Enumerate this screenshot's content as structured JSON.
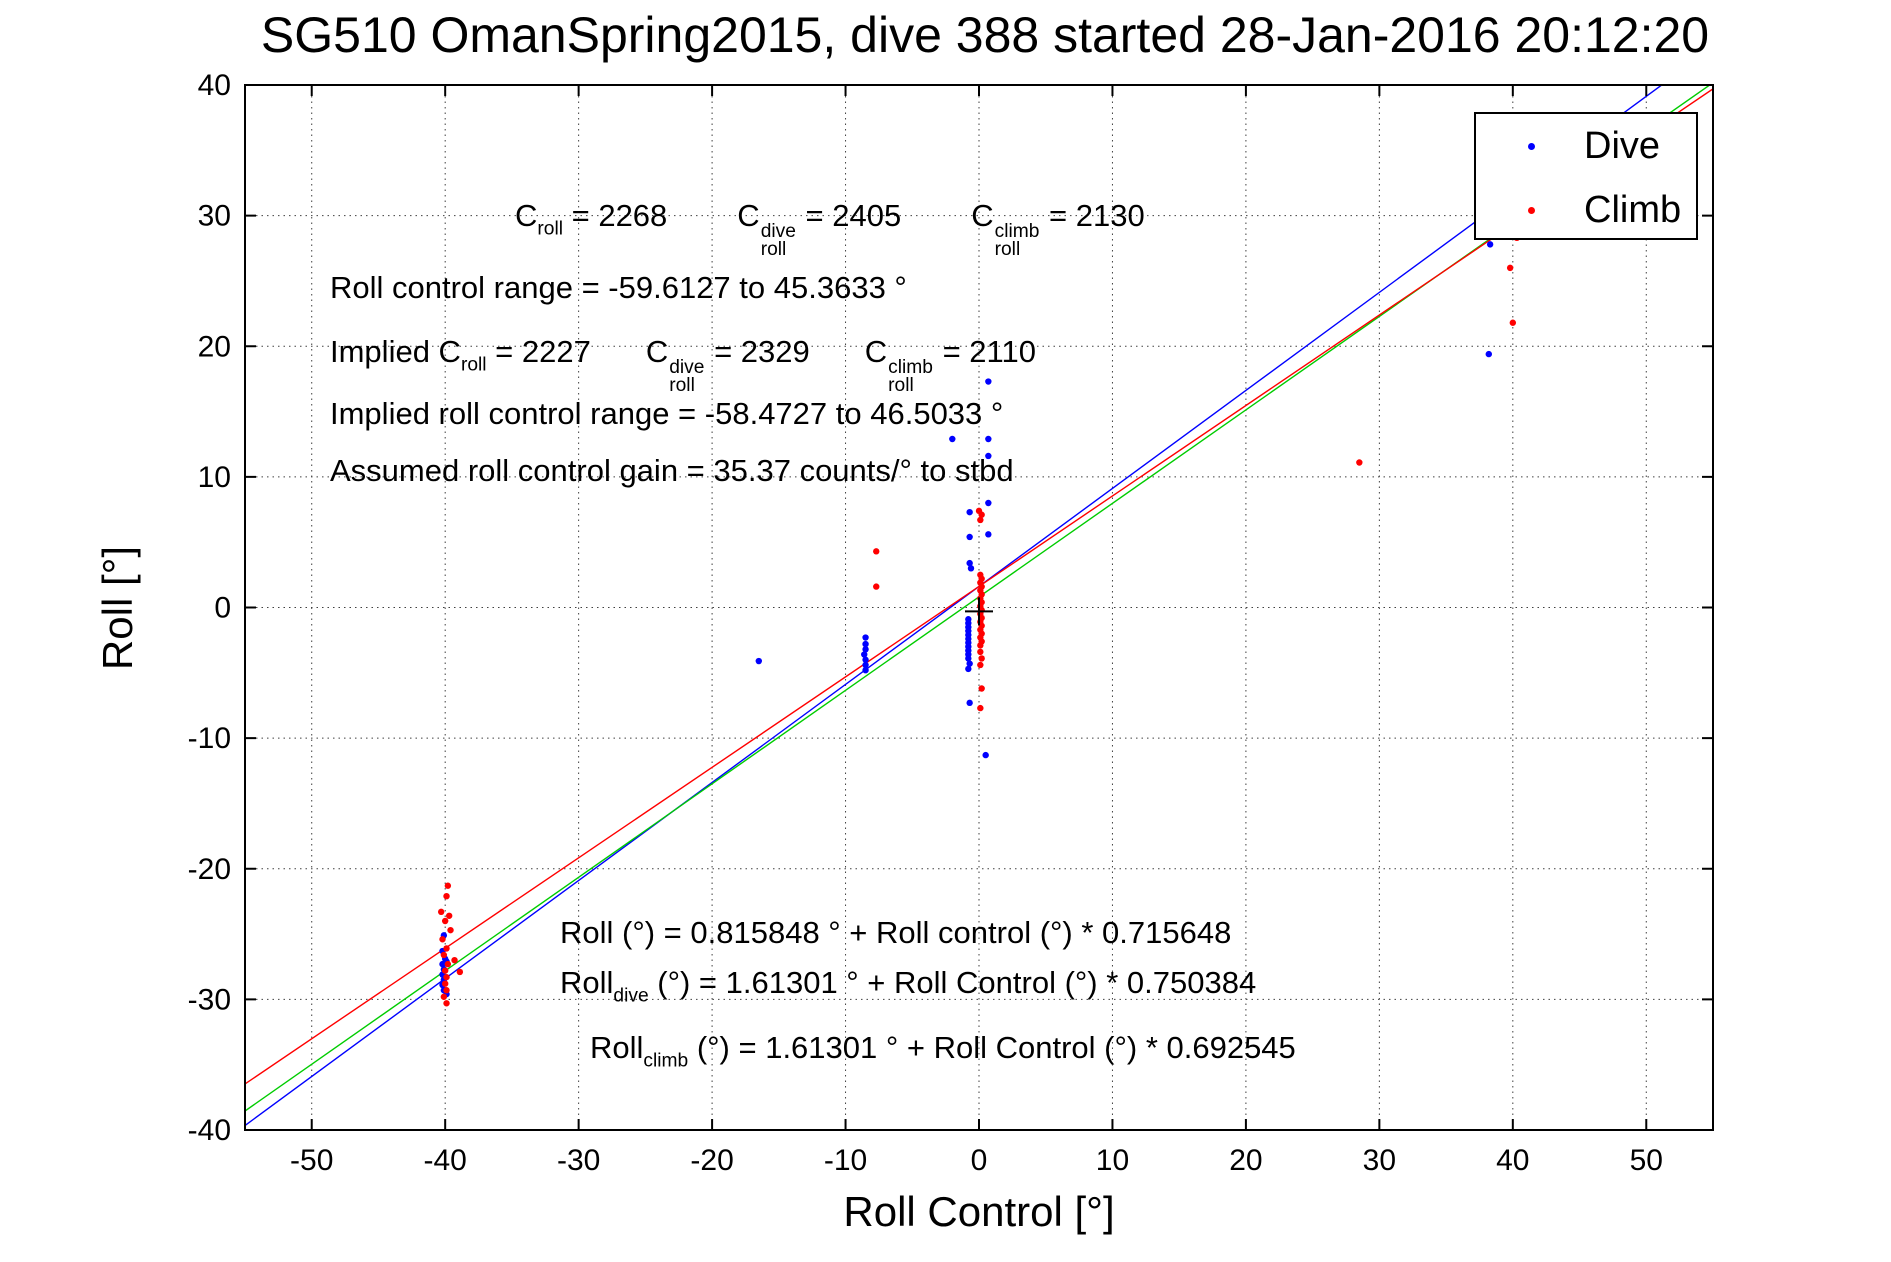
{
  "chart_data": {
    "type": "scatter",
    "title": "SG510 OmanSpring2015, dive 388 started 28-Jan-2016 20:12:20",
    "xlabel": "Roll Control [°]",
    "ylabel": "Roll [°]",
    "xlim": [
      -55,
      55
    ],
    "ylim": [
      -40,
      40
    ],
    "xticks": [
      -50,
      -40,
      -30,
      -20,
      -10,
      0,
      10,
      20,
      30,
      40,
      50
    ],
    "yticks": [
      -40,
      -30,
      -20,
      -10,
      0,
      10,
      20,
      30,
      40
    ],
    "grid": true,
    "legend": {
      "position": "northeast",
      "entries": [
        {
          "label": "Dive",
          "color": "#0000ff",
          "marker": "point"
        },
        {
          "label": "Climb",
          "color": "#ff0000",
          "marker": "point"
        }
      ]
    },
    "series": [
      {
        "name": "Dive",
        "color": "#0000ff",
        "marker": "point",
        "points": [
          [
            -40.1,
            -25.1
          ],
          [
            -40.2,
            -26.3
          ],
          [
            -40.0,
            -26.9
          ],
          [
            -40.2,
            -27.3
          ],
          [
            -40.1,
            -27.7
          ],
          [
            -40.2,
            -28.1
          ],
          [
            -40.1,
            -28.5
          ],
          [
            -40.2,
            -28.9
          ],
          [
            -40.1,
            -29.3
          ],
          [
            -39.9,
            -29.6
          ],
          [
            -40.0,
            -28.3
          ],
          [
            -39.9,
            -27.1
          ],
          [
            -16.5,
            -4.1
          ],
          [
            -8.5,
            -2.3
          ],
          [
            -8.5,
            -2.8
          ],
          [
            -8.5,
            -3.2
          ],
          [
            -8.6,
            -3.6
          ],
          [
            -8.5,
            -4.0
          ],
          [
            -8.5,
            -4.4
          ],
          [
            -8.5,
            -4.8
          ],
          [
            0.7,
            17.3
          ],
          [
            -2.0,
            12.9
          ],
          [
            0.7,
            12.9
          ],
          [
            0.7,
            11.6
          ],
          [
            0.7,
            8.0
          ],
          [
            -0.7,
            7.3
          ],
          [
            0.7,
            5.6
          ],
          [
            -0.7,
            5.4
          ],
          [
            -0.7,
            3.4
          ],
          [
            -0.6,
            3.0
          ],
          [
            -0.8,
            -0.9
          ],
          [
            -0.8,
            -1.2
          ],
          [
            -0.8,
            -1.5
          ],
          [
            -0.8,
            -1.8
          ],
          [
            -0.8,
            -2.1
          ],
          [
            -0.8,
            -2.4
          ],
          [
            -0.8,
            -2.7
          ],
          [
            -0.8,
            -3.0
          ],
          [
            -0.8,
            -3.3
          ],
          [
            -0.8,
            -3.6
          ],
          [
            -0.8,
            -3.9
          ],
          [
            -0.7,
            -4.3
          ],
          [
            -0.8,
            -4.7
          ],
          [
            -0.7,
            -7.3
          ],
          [
            0.5,
            -11.3
          ],
          [
            38.2,
            19.4
          ],
          [
            38.3,
            27.8
          ]
        ]
      },
      {
        "name": "Climb",
        "color": "#ff0000",
        "marker": "point",
        "points": [
          [
            -39.8,
            -21.3
          ],
          [
            -39.9,
            -22.1
          ],
          [
            -40.3,
            -23.3
          ],
          [
            -39.7,
            -23.6
          ],
          [
            -40.0,
            -24.0
          ],
          [
            -39.6,
            -24.7
          ],
          [
            -40.2,
            -25.4
          ],
          [
            -39.9,
            -26.1
          ],
          [
            -40.1,
            -26.6
          ],
          [
            -39.8,
            -27.3
          ],
          [
            -40.0,
            -27.8
          ],
          [
            -39.9,
            -28.3
          ],
          [
            -38.9,
            -27.9
          ],
          [
            -39.3,
            -27.0
          ],
          [
            -40.0,
            -28.8
          ],
          [
            -39.9,
            -29.3
          ],
          [
            -40.1,
            -29.8
          ],
          [
            -39.9,
            -30.3
          ],
          [
            -7.7,
            4.3
          ],
          [
            -7.7,
            1.6
          ],
          [
            0.0,
            7.4
          ],
          [
            0.2,
            7.1
          ],
          [
            0.1,
            6.7
          ],
          [
            0.1,
            2.5
          ],
          [
            0.2,
            2.2
          ],
          [
            0.1,
            1.9
          ],
          [
            0.2,
            1.6
          ],
          [
            0.1,
            1.3
          ],
          [
            0.2,
            1.0
          ],
          [
            0.1,
            0.7
          ],
          [
            0.2,
            0.4
          ],
          [
            0.1,
            0.1
          ],
          [
            0.2,
            -0.2
          ],
          [
            0.1,
            -0.5
          ],
          [
            0.2,
            -0.8
          ],
          [
            0.1,
            -1.1
          ],
          [
            0.2,
            -1.4
          ],
          [
            0.1,
            -1.7
          ],
          [
            0.2,
            -2.0
          ],
          [
            0.1,
            -2.3
          ],
          [
            0.2,
            -2.6
          ],
          [
            0.1,
            -2.9
          ],
          [
            0.1,
            -3.4
          ],
          [
            0.2,
            -3.9
          ],
          [
            0.1,
            -4.4
          ],
          [
            0.2,
            -6.2
          ],
          [
            0.1,
            -7.7
          ],
          [
            28.5,
            11.1
          ],
          [
            40.3,
            28.3
          ],
          [
            39.8,
            26.0
          ],
          [
            40.0,
            21.8
          ]
        ]
      }
    ],
    "fit_lines": [
      {
        "name": "dive-fit",
        "color": "#0000ff",
        "intercept": 1.61301,
        "slope": 0.750384
      },
      {
        "name": "combined-fit",
        "color": "#00cc00",
        "intercept": 0.815848,
        "slope": 0.715648
      },
      {
        "name": "climb-fit",
        "color": "#ff0000",
        "intercept": 1.61301,
        "slope": 0.692545
      }
    ],
    "center_marker": {
      "x": 0,
      "y": -0.3,
      "color": "#000000"
    },
    "annotations": [
      {
        "id": "croll-values",
        "segments": [
          {
            "t": "C"
          },
          {
            "sub": "roll"
          },
          {
            "t": " = 2268"
          },
          {
            "gap": 70
          },
          {
            "t": "C"
          },
          {
            "stack": {
              "sup": "dive",
              "sub": "roll"
            }
          },
          {
            "t": " = 2405"
          },
          {
            "gap": 70
          },
          {
            "t": "C"
          },
          {
            "stack": {
              "sup": "climb",
              "sub": "roll"
            }
          },
          {
            "t": " = 2130"
          }
        ]
      },
      {
        "id": "roll-control-range",
        "segments": [
          {
            "t": "Roll control range = -59.6127 to 45.3633 °"
          }
        ]
      },
      {
        "id": "implied-croll-values",
        "segments": [
          {
            "t": "Implied C"
          },
          {
            "sub": "roll"
          },
          {
            "t": " = 2227"
          },
          {
            "gap": 55
          },
          {
            "t": "C"
          },
          {
            "stack": {
              "sup": "dive",
              "sub": "roll"
            }
          },
          {
            "t": " = 2329"
          },
          {
            "gap": 55
          },
          {
            "t": "C"
          },
          {
            "stack": {
              "sup": "climb",
              "sub": "roll"
            }
          },
          {
            "t": " = 2110"
          }
        ]
      },
      {
        "id": "implied-roll-control-range",
        "segments": [
          {
            "t": "Implied roll control range = -58.4727 to 46.5033 °"
          }
        ]
      },
      {
        "id": "assumed-gain",
        "segments": [
          {
            "t": "Assumed roll control gain = 35.37 counts/° to stbd"
          }
        ]
      },
      {
        "id": "fit-combined",
        "segments": [
          {
            "t": "Roll (°) = 0.815848 ° + Roll control (°) * 0.715648"
          }
        ]
      },
      {
        "id": "fit-dive",
        "segments": [
          {
            "t": "Roll"
          },
          {
            "sub": "dive"
          },
          {
            "t": " (°) = 1.61301 ° + Roll Control (°) * 0.750384"
          }
        ]
      },
      {
        "id": "fit-climb",
        "segments": [
          {
            "t": "Roll"
          },
          {
            "sub": "climb"
          },
          {
            "t": " (°) = 1.61301 ° + Roll Control (°) * 0.692545"
          }
        ]
      }
    ]
  }
}
